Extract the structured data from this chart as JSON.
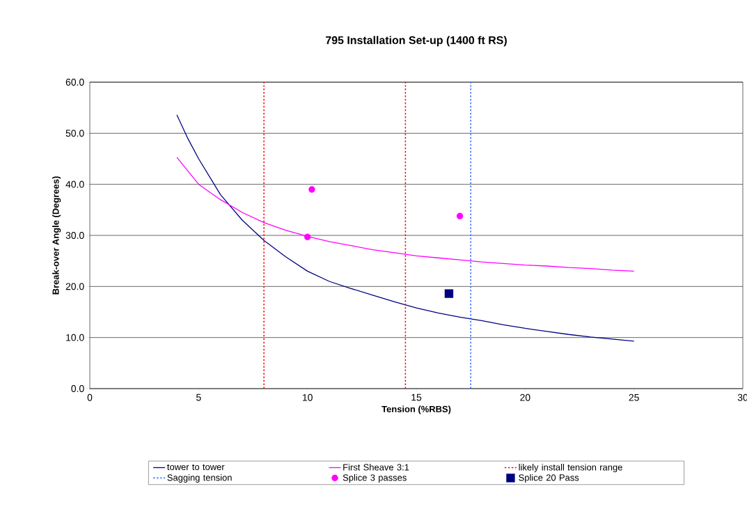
{
  "chart_data": {
    "type": "line",
    "title": "795 Installation Set-up (1400 ft RS)",
    "xlabel": "Tension (%RBS)",
    "ylabel": "Break-over Angle (Degrees)",
    "xlim": [
      0,
      30
    ],
    "xticks": [
      0,
      5,
      10,
      15,
      20,
      25,
      30
    ],
    "ylim": [
      0,
      60
    ],
    "yticks": [
      {
        "value": 0,
        "label": "0.0"
      },
      {
        "value": 10,
        "label": "10.0"
      },
      {
        "value": 20,
        "label": "20.0"
      },
      {
        "value": 30,
        "label": "30.0"
      },
      {
        "value": 40,
        "label": "40.0"
      },
      {
        "value": 50,
        "label": "50.0"
      },
      {
        "value": 60,
        "label": "60.0"
      }
    ],
    "grid": "y",
    "legend": "bottom",
    "series": [
      {
        "name": "tower to tower",
        "color": "#000080",
        "marker": "none",
        "line_style": "solid",
        "x": [
          4,
          4.5,
          5,
          6,
          7,
          8,
          9,
          10,
          11,
          12,
          13,
          14,
          15,
          16,
          17,
          18,
          19,
          20,
          21,
          22,
          23,
          24,
          25
        ],
        "values": [
          53.6,
          49,
          45,
          38,
          33,
          29,
          25.8,
          23,
          21,
          19.6,
          18.3,
          17,
          15.8,
          14.8,
          14,
          13.3,
          12.5,
          11.8,
          11.2,
          10.6,
          10.1,
          9.7,
          9.3
        ]
      },
      {
        "name": "First Sheave 3:1",
        "color": "#ff00ff",
        "marker": "none",
        "line_style": "solid",
        "x": [
          4,
          5,
          6,
          7,
          8,
          9,
          10,
          11,
          12,
          13,
          14,
          15,
          16,
          17,
          18,
          19,
          20,
          21,
          22,
          23,
          24,
          25
        ],
        "values": [
          45.3,
          40,
          37,
          34.5,
          32.5,
          31,
          29.8,
          28.8,
          28,
          27.2,
          26.6,
          26,
          25.6,
          25.2,
          24.8,
          24.5,
          24.2,
          24,
          23.7,
          23.5,
          23.2,
          23
        ]
      },
      {
        "name": "Splice 3 passes",
        "type": "scatter",
        "color": "#ff00ff",
        "marker": "circle",
        "x": [
          10.2,
          10,
          17
        ],
        "values": [
          39,
          29.7,
          33.8
        ]
      },
      {
        "name": "Splice 20 Pass",
        "type": "scatter",
        "color": "#000080",
        "marker": "square",
        "x": [
          16.5
        ],
        "values": [
          18.6
        ]
      }
    ],
    "ref_lines": [
      {
        "axis": "x",
        "value": 8,
        "label": "likely install tension range",
        "color": "#ff0000",
        "line_style": "dotted"
      },
      {
        "axis": "x",
        "value": 14.5,
        "color": "#ff0000",
        "line_style": "dotted"
      },
      {
        "axis": "x",
        "value": 17.5,
        "label": "Sagging tension",
        "color": "#3366ff",
        "line_style": "dotted"
      }
    ]
  }
}
